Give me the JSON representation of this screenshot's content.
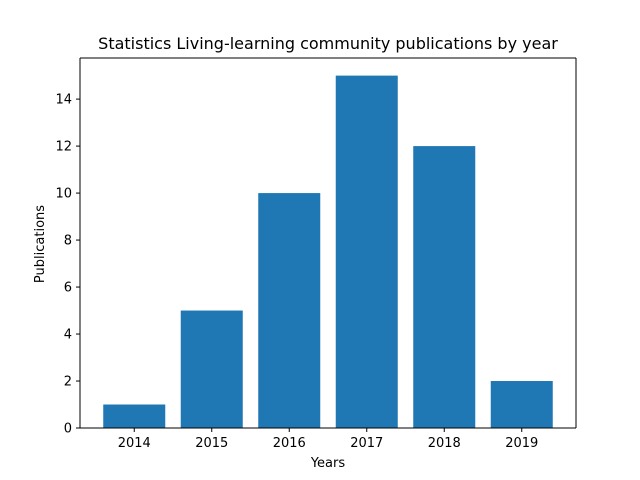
{
  "chart_data": {
    "type": "bar",
    "title": "Statistics Living-learning community publications by year",
    "xlabel": "Years",
    "ylabel": "Publications",
    "categories": [
      "2014",
      "2015",
      "2016",
      "2017",
      "2018",
      "2019"
    ],
    "values": [
      1,
      5,
      10,
      15,
      12,
      2
    ],
    "ylim": [
      0,
      15.75
    ],
    "yticks": [
      0,
      2,
      4,
      6,
      8,
      10,
      12,
      14
    ],
    "grid": false,
    "legend": "none",
    "bar_color": "#1f77b4"
  }
}
